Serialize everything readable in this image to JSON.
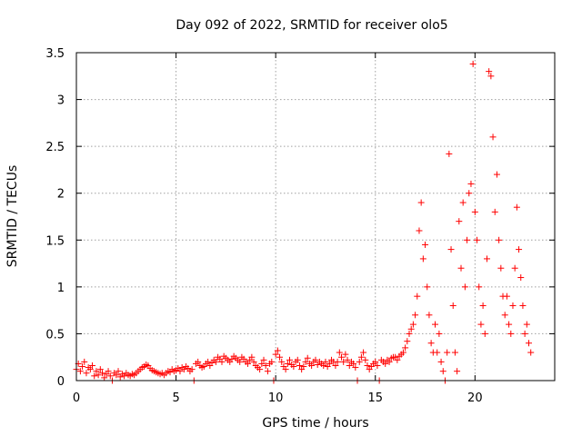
{
  "chart_data": {
    "type": "scatter",
    "title": "Day 092 of 2022, SRMTID for receiver olo5",
    "xlabel": "GPS time / hours",
    "ylabel": "SRMTID / TECUs",
    "xlim": [
      0,
      24
    ],
    "ylim": [
      0,
      3.5
    ],
    "xticks": [
      0,
      5,
      10,
      15,
      20
    ],
    "xtick_labels": [
      "0",
      "5",
      "10",
      "15",
      "20"
    ],
    "yticks": [
      0,
      0.5,
      1,
      1.5,
      2,
      2.5,
      3,
      3.5
    ],
    "ytick_labels": [
      "0",
      "0.5",
      "1",
      "1.5",
      "2",
      "2.5",
      "3",
      "3.5"
    ],
    "grid": true,
    "marker": "+",
    "colors": {
      "marker": "#ff0000",
      "grid": "#a0a0a0",
      "axis": "#000000"
    },
    "series": [
      {
        "name": "SRMTID",
        "points": [
          [
            0.0,
            0.12
          ],
          [
            0.1,
            0.18
          ],
          [
            0.2,
            0.1
          ],
          [
            0.3,
            0.15
          ],
          [
            0.4,
            0.2
          ],
          [
            0.5,
            0.08
          ],
          [
            0.6,
            0.14
          ],
          [
            0.7,
            0.12
          ],
          [
            0.8,
            0.16
          ],
          [
            0.9,
            0.05
          ],
          [
            1.0,
            0.1
          ],
          [
            1.1,
            0.06
          ],
          [
            1.2,
            0.12
          ],
          [
            1.3,
            0.08
          ],
          [
            1.4,
            0.03
          ],
          [
            1.5,
            0.07
          ],
          [
            1.6,
            0.1
          ],
          [
            1.7,
            0.05
          ],
          [
            1.8,
            0.0
          ],
          [
            1.9,
            0.08
          ],
          [
            2.0,
            0.06
          ],
          [
            2.1,
            0.1
          ],
          [
            2.2,
            0.04
          ],
          [
            2.3,
            0.07
          ],
          [
            2.4,
            0.05
          ],
          [
            2.5,
            0.08
          ],
          [
            2.6,
            0.06
          ],
          [
            2.7,
            0.05
          ],
          [
            2.8,
            0.07
          ],
          [
            2.9,
            0.06
          ],
          [
            3.0,
            0.08
          ],
          [
            3.1,
            0.1
          ],
          [
            3.2,
            0.12
          ],
          [
            3.3,
            0.14
          ],
          [
            3.4,
            0.15
          ],
          [
            3.5,
            0.17
          ],
          [
            3.6,
            0.16
          ],
          [
            3.7,
            0.13
          ],
          [
            3.8,
            0.11
          ],
          [
            3.9,
            0.1
          ],
          [
            4.0,
            0.09
          ],
          [
            4.1,
            0.08
          ],
          [
            4.2,
            0.07
          ],
          [
            4.3,
            0.08
          ],
          [
            4.4,
            0.06
          ],
          [
            4.5,
            0.08
          ],
          [
            4.6,
            0.1
          ],
          [
            4.7,
            0.09
          ],
          [
            4.8,
            0.12
          ],
          [
            4.9,
            0.1
          ],
          [
            5.0,
            0.11
          ],
          [
            5.1,
            0.13
          ],
          [
            5.2,
            0.1
          ],
          [
            5.3,
            0.14
          ],
          [
            5.4,
            0.12
          ],
          [
            5.5,
            0.15
          ],
          [
            5.6,
            0.13
          ],
          [
            5.7,
            0.1
          ],
          [
            5.8,
            0.12
          ],
          [
            5.9,
            0.0
          ],
          [
            6.0,
            0.18
          ],
          [
            6.1,
            0.2
          ],
          [
            6.2,
            0.16
          ],
          [
            6.3,
            0.14
          ],
          [
            6.4,
            0.15
          ],
          [
            6.5,
            0.18
          ],
          [
            6.6,
            0.2
          ],
          [
            6.7,
            0.16
          ],
          [
            6.8,
            0.19
          ],
          [
            6.9,
            0.22
          ],
          [
            7.0,
            0.2
          ],
          [
            7.1,
            0.25
          ],
          [
            7.2,
            0.23
          ],
          [
            7.3,
            0.2
          ],
          [
            7.4,
            0.26
          ],
          [
            7.5,
            0.24
          ],
          [
            7.6,
            0.22
          ],
          [
            7.7,
            0.2
          ],
          [
            7.8,
            0.23
          ],
          [
            7.9,
            0.26
          ],
          [
            8.0,
            0.24
          ],
          [
            8.1,
            0.22
          ],
          [
            8.2,
            0.2
          ],
          [
            8.3,
            0.25
          ],
          [
            8.4,
            0.23
          ],
          [
            8.5,
            0.2
          ],
          [
            8.6,
            0.18
          ],
          [
            8.7,
            0.22
          ],
          [
            8.8,
            0.25
          ],
          [
            8.9,
            0.2
          ],
          [
            9.0,
            0.16
          ],
          [
            9.1,
            0.14
          ],
          [
            9.2,
            0.12
          ],
          [
            9.3,
            0.18
          ],
          [
            9.4,
            0.22
          ],
          [
            9.5,
            0.16
          ],
          [
            9.6,
            0.1
          ],
          [
            9.7,
            0.18
          ],
          [
            9.8,
            0.2
          ],
          [
            9.9,
            0.0
          ],
          [
            10.0,
            0.28
          ],
          [
            10.1,
            0.32
          ],
          [
            10.2,
            0.25
          ],
          [
            10.3,
            0.2
          ],
          [
            10.4,
            0.15
          ],
          [
            10.5,
            0.12
          ],
          [
            10.6,
            0.18
          ],
          [
            10.7,
            0.22
          ],
          [
            10.8,
            0.17
          ],
          [
            10.9,
            0.15
          ],
          [
            11.0,
            0.2
          ],
          [
            11.1,
            0.22
          ],
          [
            11.2,
            0.16
          ],
          [
            11.3,
            0.12
          ],
          [
            11.4,
            0.15
          ],
          [
            11.5,
            0.2
          ],
          [
            11.6,
            0.24
          ],
          [
            11.7,
            0.18
          ],
          [
            11.8,
            0.16
          ],
          [
            11.9,
            0.2
          ],
          [
            12.0,
            0.22
          ],
          [
            12.1,
            0.17
          ],
          [
            12.2,
            0.2
          ],
          [
            12.3,
            0.18
          ],
          [
            12.4,
            0.16
          ],
          [
            12.5,
            0.2
          ],
          [
            12.6,
            0.15
          ],
          [
            12.7,
            0.18
          ],
          [
            12.8,
            0.22
          ],
          [
            12.9,
            0.2
          ],
          [
            13.0,
            0.16
          ],
          [
            13.1,
            0.2
          ],
          [
            13.2,
            0.3
          ],
          [
            13.3,
            0.25
          ],
          [
            13.4,
            0.2
          ],
          [
            13.5,
            0.28
          ],
          [
            13.6,
            0.22
          ],
          [
            13.7,
            0.16
          ],
          [
            13.8,
            0.2
          ],
          [
            13.9,
            0.18
          ],
          [
            14.0,
            0.14
          ],
          [
            14.1,
            0.0
          ],
          [
            14.2,
            0.2
          ],
          [
            14.3,
            0.25
          ],
          [
            14.4,
            0.3
          ],
          [
            14.5,
            0.22
          ],
          [
            14.6,
            0.16
          ],
          [
            14.7,
            0.12
          ],
          [
            14.8,
            0.15
          ],
          [
            14.9,
            0.18
          ],
          [
            15.0,
            0.2
          ],
          [
            15.1,
            0.16
          ],
          [
            15.2,
            0.0
          ],
          [
            15.3,
            0.22
          ],
          [
            15.4,
            0.2
          ],
          [
            15.5,
            0.18
          ],
          [
            15.6,
            0.22
          ],
          [
            15.7,
            0.2
          ],
          [
            15.8,
            0.24
          ],
          [
            15.9,
            0.25
          ],
          [
            16.0,
            0.25
          ],
          [
            16.1,
            0.22
          ],
          [
            16.2,
            0.26
          ],
          [
            16.3,
            0.28
          ],
          [
            16.4,
            0.3
          ],
          [
            16.5,
            0.35
          ],
          [
            16.6,
            0.42
          ],
          [
            16.7,
            0.5
          ],
          [
            16.8,
            0.55
          ],
          [
            16.9,
            0.6
          ],
          [
            17.0,
            0.7
          ],
          [
            17.1,
            0.9
          ],
          [
            17.2,
            1.6
          ],
          [
            17.3,
            1.9
          ],
          [
            17.4,
            1.3
          ],
          [
            17.5,
            1.45
          ],
          [
            17.6,
            1.0
          ],
          [
            17.7,
            0.7
          ],
          [
            17.8,
            0.4
          ],
          [
            17.9,
            0.3
          ],
          [
            18.0,
            0.6
          ],
          [
            18.1,
            0.3
          ],
          [
            18.2,
            0.5
          ],
          [
            18.3,
            0.2
          ],
          [
            18.4,
            0.1
          ],
          [
            18.5,
            0.0
          ],
          [
            18.6,
            0.3
          ],
          [
            18.7,
            2.42
          ],
          [
            18.8,
            1.4
          ],
          [
            18.9,
            0.8
          ],
          [
            19.0,
            0.3
          ],
          [
            19.1,
            0.1
          ],
          [
            19.2,
            1.7
          ],
          [
            19.3,
            1.2
          ],
          [
            19.4,
            1.9
          ],
          [
            19.5,
            1.0
          ],
          [
            19.6,
            1.5
          ],
          [
            19.7,
            2.0
          ],
          [
            19.8,
            2.1
          ],
          [
            19.9,
            3.38
          ],
          [
            20.0,
            1.8
          ],
          [
            20.1,
            1.5
          ],
          [
            20.2,
            1.0
          ],
          [
            20.3,
            0.6
          ],
          [
            20.4,
            0.8
          ],
          [
            20.5,
            0.5
          ],
          [
            20.6,
            1.3
          ],
          [
            20.7,
            3.3
          ],
          [
            20.8,
            3.25
          ],
          [
            20.9,
            2.6
          ],
          [
            21.0,
            1.8
          ],
          [
            21.1,
            2.2
          ],
          [
            21.2,
            1.5
          ],
          [
            21.3,
            1.2
          ],
          [
            21.4,
            0.9
          ],
          [
            21.5,
            0.7
          ],
          [
            21.6,
            0.9
          ],
          [
            21.7,
            0.6
          ],
          [
            21.8,
            0.5
          ],
          [
            21.9,
            0.8
          ],
          [
            22.0,
            1.2
          ],
          [
            22.1,
            1.85
          ],
          [
            22.2,
            1.4
          ],
          [
            22.3,
            1.1
          ],
          [
            22.4,
            0.8
          ],
          [
            22.5,
            0.5
          ],
          [
            22.6,
            0.6
          ],
          [
            22.7,
            0.4
          ],
          [
            22.8,
            0.3
          ]
        ]
      }
    ]
  }
}
